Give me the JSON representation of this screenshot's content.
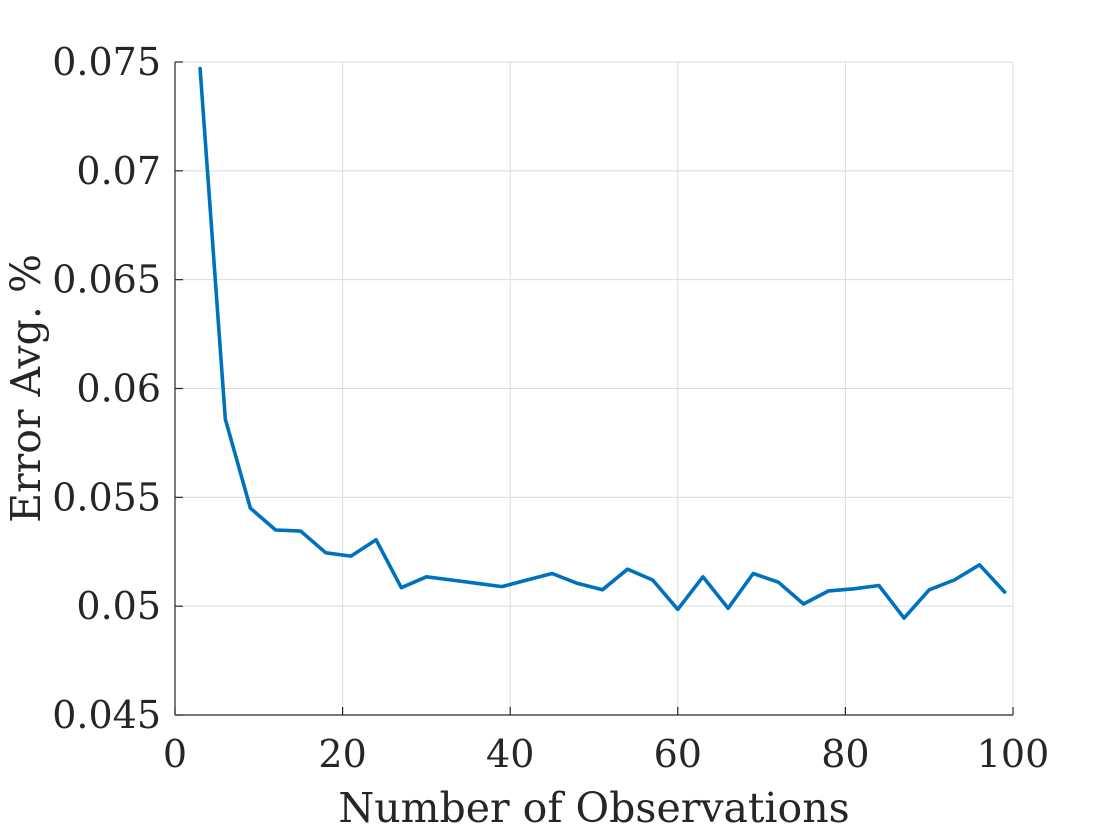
{
  "chart_data": {
    "type": "line",
    "xlabel": "Number of Observations",
    "ylabel": "Error Avg. %",
    "xlim": [
      0,
      100
    ],
    "ylim": [
      0.045,
      0.075
    ],
    "x_ticks": [
      "0",
      "20",
      "40",
      "60",
      "80",
      "100"
    ],
    "x_tick_values": [
      0,
      20,
      40,
      60,
      80,
      100
    ],
    "y_ticks": [
      "0.045",
      "0.05",
      "0.055",
      "0.06",
      "0.065",
      "0.07",
      "0.075"
    ],
    "y_tick_values": [
      0.045,
      0.05,
      0.055,
      0.06,
      0.065,
      0.07,
      0.075
    ],
    "grid": true,
    "box": "top-right",
    "series": [
      {
        "color": "#0072BD",
        "x": [
          3,
          6,
          9,
          12,
          15,
          18,
          21,
          24,
          27,
          30,
          33,
          36,
          39,
          42,
          45,
          48,
          51,
          54,
          57,
          60,
          63,
          66,
          69,
          72,
          75,
          78,
          81,
          84,
          87,
          90,
          93,
          96,
          99
        ],
        "y": [
          0.0747,
          0.0586,
          0.0545,
          0.0535,
          0.05345,
          0.05245,
          0.0523,
          0.05305,
          0.05085,
          0.05135,
          0.0512,
          0.05105,
          0.0509,
          0.0512,
          0.0515,
          0.05105,
          0.05075,
          0.0517,
          0.0512,
          0.04985,
          0.05135,
          0.0499,
          0.0515,
          0.0511,
          0.0501,
          0.0507,
          0.0508,
          0.05095,
          0.04945,
          0.05075,
          0.0512,
          0.0519,
          0.05065
        ]
      }
    ]
  }
}
